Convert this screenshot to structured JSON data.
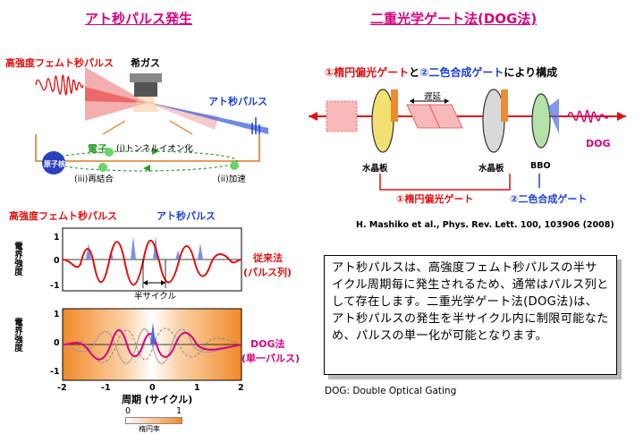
{
  "left": {
    "title": "アト秒パルス発生",
    "hhg": {
      "fs_pulse_label": "高強度フェムト秒パルス",
      "gas_label": "希ガス",
      "as_pulse_label": "アト秒パルス",
      "electron_label": "電子",
      "nucleus_label": "原子核",
      "step1": "(i)トンネルイオン化",
      "step2": "(ii)加速",
      "step3": "(iii)再結合"
    },
    "plot_top": {
      "fs_label": "高強度フェムト秒パルス",
      "as_label": "アト秒パルス",
      "ylabel": "電界強度",
      "yticks": [
        "1",
        "0",
        "-1"
      ],
      "half_cycle_label": "半サイクル",
      "method_label": "従来法",
      "method_sub": "(パルス列)"
    },
    "plot_bottom": {
      "ylabel": "電界強度",
      "yticks": [
        "1",
        "0",
        "-1"
      ],
      "xticks": [
        "-2",
        "-1",
        "0",
        "1",
        "2"
      ],
      "xlabel": "周期 (サイクル)",
      "method_label": "DOG法",
      "method_sub": "(単一パルス)"
    },
    "colorbar": {
      "min": "0",
      "max": "1",
      "label": "楕円率"
    }
  },
  "right": {
    "title": "二重光学ゲート法(DOG法)",
    "subtitle_prefix": "①楕円偏光ゲート",
    "subtitle_and": "と",
    "subtitle_second": "②二色合成ゲート",
    "subtitle_suffix": "により構成",
    "delay_label": "遅延",
    "quartz1": "水晶板",
    "quartz2": "水晶板",
    "bbo": "BBO",
    "dog": "DOG",
    "gate1": "①楕円偏光ゲート",
    "gate2": "②二色合成ゲート",
    "citation": "H. Mashiko et al., Phys. Rev. Lett. 100, 103906 (2008)",
    "description": "アト秒パルスは、高強度フェムト秒パルスの半サイクル周期毎に発生されるため、通常はパルス列として存在します。二重光学ゲート法(DOG法)は、アト秒パルスの発生を半サイクル内に制限可能なため、パルスの単一化が可能となります。",
    "footnote": "DOG: Double Optical Gating"
  },
  "colors": {
    "title_magenta": "#d6007f",
    "red": "#e01010",
    "blue": "#1b3fd6",
    "orange": "#f08a2a",
    "green": "#2f9a2f"
  }
}
